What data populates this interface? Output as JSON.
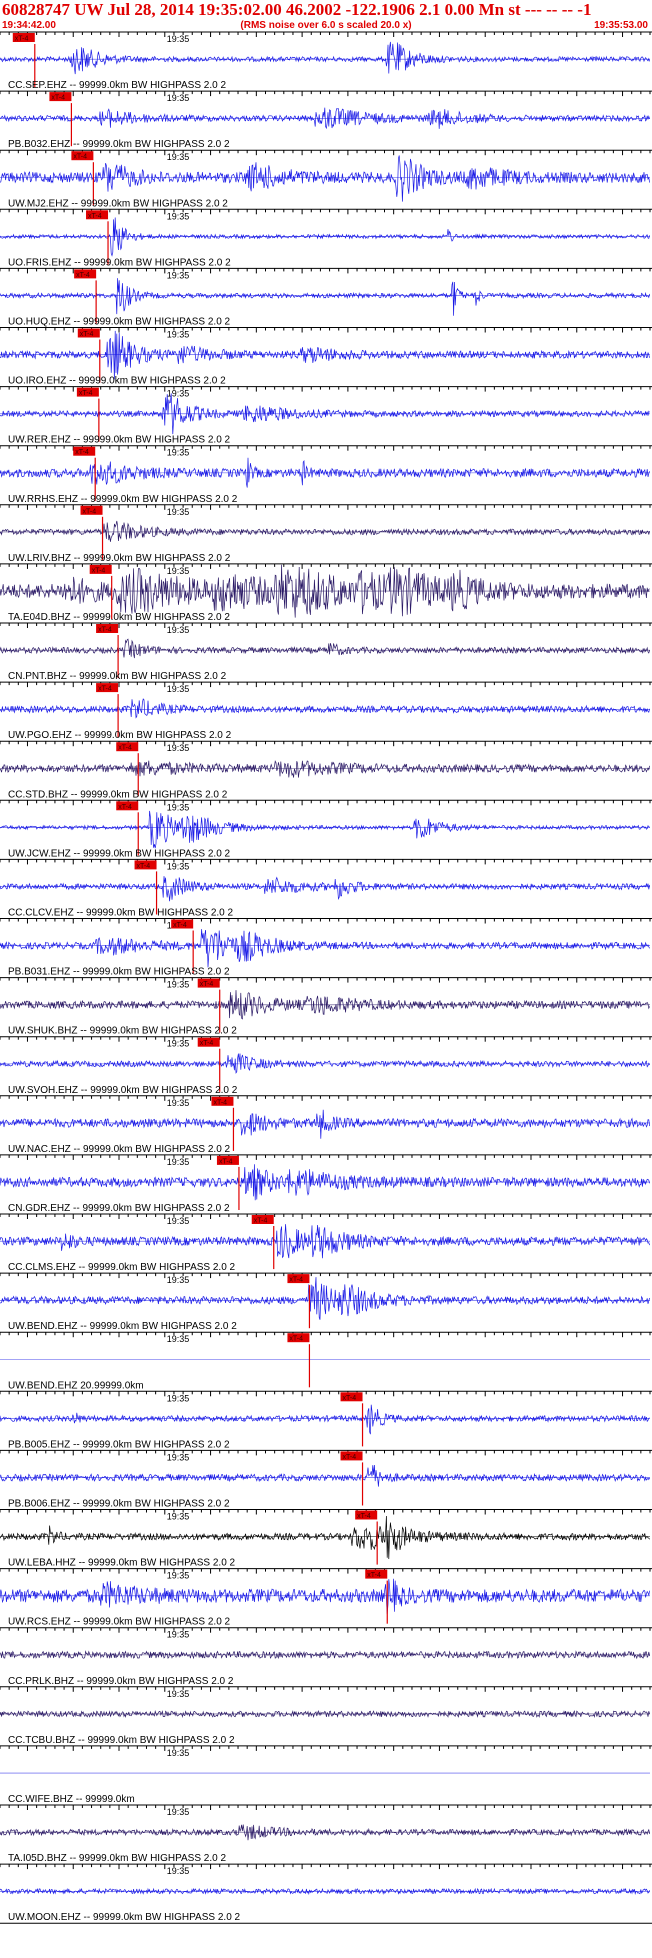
{
  "header": {
    "title": "60828747 UW Jul 28, 2014 19:35:02.00   46.2002 -122.1906  2.1 0.00 Mn st --- -- --   -1",
    "start_time": "19:34:42.00",
    "noise_note": "(RMS noise over 6.0 s scaled 20.0 x)",
    "end_time": "19:35:53.00"
  },
  "colors": {
    "header": "#e00000",
    "pick": "#e00000",
    "ehz": "#1a1ae6",
    "bhz": "#2b1a66",
    "hhz": "#000000"
  },
  "chart_data": {
    "type": "line",
    "title": "60828747 UW Jul 28, 2014 19:35:02.00   46.2002 -122.1906  2.1 0.00 Mn st --- -- --   -1",
    "time_range": [
      "19:34:42.00",
      "19:35:53.00"
    ],
    "time_range_seconds": [
      0,
      71
    ],
    "minute_tick_label": "19:35",
    "minute_tick_seconds": 18,
    "pick_label": "xT-4",
    "grid": false,
    "series": [
      {
        "label": "CC.SEP.EHZ -- 99999.0km BW  HIGHPASS  2.0  2",
        "kind": "ehz",
        "pick_s": 3.8,
        "bursts": [
          [
            8.5,
            2.2,
            0.6
          ],
          [
            43,
            2,
            0.75
          ]
        ],
        "noise": 0.1
      },
      {
        "label": "PB.B032.EHZ -- 99999.0km BW  HIGHPASS  2.0  2",
        "kind": "ehz",
        "pick_s": 7.8,
        "bursts": [
          [
            12,
            3,
            0.3
          ],
          [
            36,
            4,
            0.4
          ],
          [
            48,
            3,
            0.3
          ]
        ],
        "noise": 0.12
      },
      {
        "label": "UW.MJ2.EHZ -- 99999.0km BW  HIGHPASS  2.0  2",
        "kind": "ehz",
        "pick_s": 10.2,
        "bursts": [
          [
            12,
            2,
            0.6
          ],
          [
            28,
            3,
            0.45
          ],
          [
            44,
            2,
            0.85
          ],
          [
            52,
            3,
            0.35
          ]
        ],
        "noise": 0.22
      },
      {
        "label": "UO.FRIS.EHZ -- 99999.0km BW  HIGHPASS  2.0  2",
        "kind": "ehz",
        "pick_s": 11.8,
        "bursts": [
          [
            12.5,
            1,
            1
          ],
          [
            49,
            0.3,
            0.5
          ]
        ],
        "noise": 0.08
      },
      {
        "label": "UO.HUQ.EHZ -- 99999.0km BW  HIGHPASS  2.0  2",
        "kind": "ehz",
        "pick_s": 10.5,
        "bursts": [
          [
            13,
            1,
            1
          ],
          [
            49.5,
            0.4,
            0.95
          ],
          [
            52,
            0.3,
            0.6
          ]
        ],
        "noise": 0.1
      },
      {
        "label": "UO.IRO.EHZ -- 99999.0km BW  HIGHPASS  2.0  2",
        "kind": "ehz",
        "pick_s": 10.9,
        "bursts": [
          [
            12.5,
            2,
            1
          ],
          [
            20,
            3,
            0.3
          ],
          [
            34,
            3,
            0.25
          ]
        ],
        "noise": 0.15
      },
      {
        "label": "UW.RER.EHZ -- 99999.0km BW  HIGHPASS  2.0  2",
        "kind": "ehz",
        "pick_s": 10.8,
        "bursts": [
          [
            18.5,
            2,
            0.9
          ],
          [
            28,
            4,
            0.3
          ]
        ],
        "noise": 0.12
      },
      {
        "label": "UW.RRHS.EHZ -- 99999.0km BW  HIGHPASS  2.0  2",
        "kind": "ehz",
        "pick_s": 10.4,
        "bursts": [
          [
            11,
            3,
            0.45
          ],
          [
            27,
            0.4,
            0.6
          ],
          [
            33,
            0.4,
            0.55
          ]
        ],
        "noise": 0.18
      },
      {
        "label": "UW.LRIV.BHZ -- 99999.0km BW  HIGHPASS  2.0  2",
        "kind": "bhz",
        "pick_s": 11.2,
        "bursts": [
          [
            12.5,
            3,
            0.4
          ]
        ],
        "noise": 0.12
      },
      {
        "label": "TA.E04D.BHZ -- 99999.0km BW  HIGHPASS  2.0  2",
        "kind": "bhz",
        "pick_s": 12.2,
        "bursts": [
          [
            8,
            3,
            0.35
          ],
          [
            15,
            6,
            0.7
          ],
          [
            25,
            4,
            0.55
          ],
          [
            32,
            5,
            0.9
          ],
          [
            40,
            3,
            0.5
          ],
          [
            44,
            4,
            0.6
          ],
          [
            50,
            2,
            0.5
          ]
        ],
        "noise": 0.3
      },
      {
        "label": "CN.PNT.BHZ -- 99999.0km BW  HIGHPASS  2.0  2",
        "kind": "bhz",
        "pick_s": 12.9,
        "bursts": [
          [
            14,
            1.5,
            0.35
          ],
          [
            36,
            1,
            0.3
          ]
        ],
        "noise": 0.12
      },
      {
        "label": "UW.PGO.EHZ -- 99999.0km BW  HIGHPASS  2.0  2",
        "kind": "ehz",
        "pick_s": 12.9,
        "bursts": [
          [
            15,
            2,
            0.4
          ]
        ],
        "noise": 0.14
      },
      {
        "label": "CC.STD.BHZ -- 99999.0km BW  HIGHPASS  2.0  2",
        "kind": "bhz",
        "pick_s": 15.1,
        "bursts": [
          [
            16,
            5,
            0.2
          ],
          [
            32,
            5,
            0.25
          ]
        ],
        "noise": 0.16
      },
      {
        "label": "UW.JCW.EHZ -- 99999.0km BW  HIGHPASS  2.0  2",
        "kind": "ehz",
        "pick_s": 15.1,
        "bursts": [
          [
            17,
            2,
            0.9
          ],
          [
            21,
            3,
            0.5
          ],
          [
            46,
            2,
            0.5
          ]
        ],
        "noise": 0.08
      },
      {
        "label": "CC.CLCV.EHZ -- 99999.0km BW  HIGHPASS  2.0  2",
        "kind": "ehz",
        "pick_s": 17.1,
        "bursts": [
          [
            18.5,
            2,
            0.5
          ],
          [
            30,
            3,
            0.3
          ],
          [
            37,
            1.5,
            0.4
          ]
        ],
        "noise": 0.12
      },
      {
        "label": "PB.B031.EHZ -- 99999.0km BW  HIGHPASS  2.0  2",
        "kind": "ehz",
        "pick_s": 21.1,
        "bursts": [
          [
            23,
            2.5,
            0.85
          ],
          [
            27,
            3,
            0.4
          ],
          [
            12,
            4,
            0.3
          ]
        ],
        "noise": 0.14
      },
      {
        "label": "UW.SHUK.BHZ -- 99999.0km BW  HIGHPASS  2.0  2",
        "kind": "bhz",
        "pick_s": 24.0,
        "bursts": [
          [
            26,
            3,
            0.55
          ],
          [
            35,
            4,
            0.3
          ]
        ],
        "noise": 0.16
      },
      {
        "label": "UW.SVOH.EHZ -- 99999.0km BW  HIGHPASS  2.0  2",
        "kind": "ehz",
        "pick_s": 24.0,
        "bursts": [
          [
            25.5,
            2,
            0.45
          ]
        ],
        "noise": 0.12
      },
      {
        "label": "UW.NAC.EHZ -- 99999.0km BW  HIGHPASS  2.0  2",
        "kind": "ehz",
        "pick_s": 25.5,
        "bursts": [
          [
            27,
            2,
            0.45
          ],
          [
            35,
            1,
            0.5
          ]
        ],
        "noise": 0.18
      },
      {
        "label": "CN.GDR.EHZ -- 99999.0km BW  HIGHPASS  2.0  2",
        "kind": "ehz",
        "pick_s": 26.1,
        "bursts": [
          [
            27.5,
            2,
            0.7
          ],
          [
            33,
            4,
            0.4
          ]
        ],
        "noise": 0.2
      },
      {
        "label": "CC.CLMS.EHZ -- 99999.0km BW  HIGHPASS  2.0  2",
        "kind": "ehz",
        "pick_s": 29.9,
        "bursts": [
          [
            31,
            2,
            0.7
          ],
          [
            35,
            3,
            0.5
          ],
          [
            7,
            1,
            0.35
          ]
        ],
        "noise": 0.18
      },
      {
        "label": "UW.BEND.EHZ -- 99999.0km BW  HIGHPASS  2.0  2",
        "kind": "ehz",
        "pick_s": 33.8,
        "bursts": [
          [
            34.5,
            2,
            0.85
          ],
          [
            38,
            3,
            0.5
          ]
        ],
        "noise": 0.16
      },
      {
        "label": "UW.BEND.EHZ 20.99999.0km",
        "kind": "flat",
        "pick_s": 33.8,
        "bursts": [],
        "noise": 0
      },
      {
        "label": "PB.B005.EHZ -- 99999.0km BW  HIGHPASS  2.0  2",
        "kind": "ehz",
        "pick_s": 39.6,
        "bursts": [
          [
            40.5,
            1,
            0.6
          ],
          [
            8,
            0.5,
            0.3
          ]
        ],
        "noise": 0.12
      },
      {
        "label": "PB.B006.EHZ -- 99999.0km BW  HIGHPASS  2.0  2",
        "kind": "ehz",
        "pick_s": 39.6,
        "bursts": [
          [
            40.5,
            1,
            0.6
          ]
        ],
        "noise": 0.14
      },
      {
        "label": "UW.LEBA.HHZ -- 99999.0km BW  HIGHPASS  2.0  2",
        "kind": "hhz",
        "pick_s": 41.2,
        "bursts": [
          [
            5.5,
            0.6,
            0.4
          ],
          [
            40,
            4,
            0.5
          ],
          [
            42.5,
            1,
            0.7
          ]
        ],
        "noise": 0.14
      },
      {
        "label": "UW.RCS.EHZ -- 99999.0km BW  HIGHPASS  2.0  2",
        "kind": "ehz",
        "pick_s": 42.3,
        "bursts": [
          [
            12,
            3,
            0.35
          ],
          [
            42.5,
            1,
            0.7
          ]
        ],
        "noise": 0.28
      },
      {
        "label": "CC.PRLK.BHZ -- 99999.0km BW  HIGHPASS  2.0  2",
        "kind": "bhz",
        "pick_s": null,
        "bursts": [],
        "noise": 0.14
      },
      {
        "label": "CC.TCBU.BHZ -- 99999.0km BW  HIGHPASS  2.0  2",
        "kind": "bhz",
        "pick_s": null,
        "bursts": [],
        "noise": 0.12
      },
      {
        "label": "CC.WIFE.BHZ -- 99999.0km",
        "kind": "flat",
        "pick_s": null,
        "bursts": [],
        "noise": 0
      },
      {
        "label": "TA.I05D.BHZ -- 99999.0km BW  HIGHPASS  2.0  2",
        "kind": "bhz",
        "pick_s": null,
        "bursts": [
          [
            27,
            3,
            0.25
          ]
        ],
        "noise": 0.12
      },
      {
        "label": "UW.MOON.EHZ -- 99999.0km BW  HIGHPASS  2.0  2",
        "kind": "ehz",
        "pick_s": null,
        "bursts": [],
        "noise": 0.1
      }
    ]
  }
}
